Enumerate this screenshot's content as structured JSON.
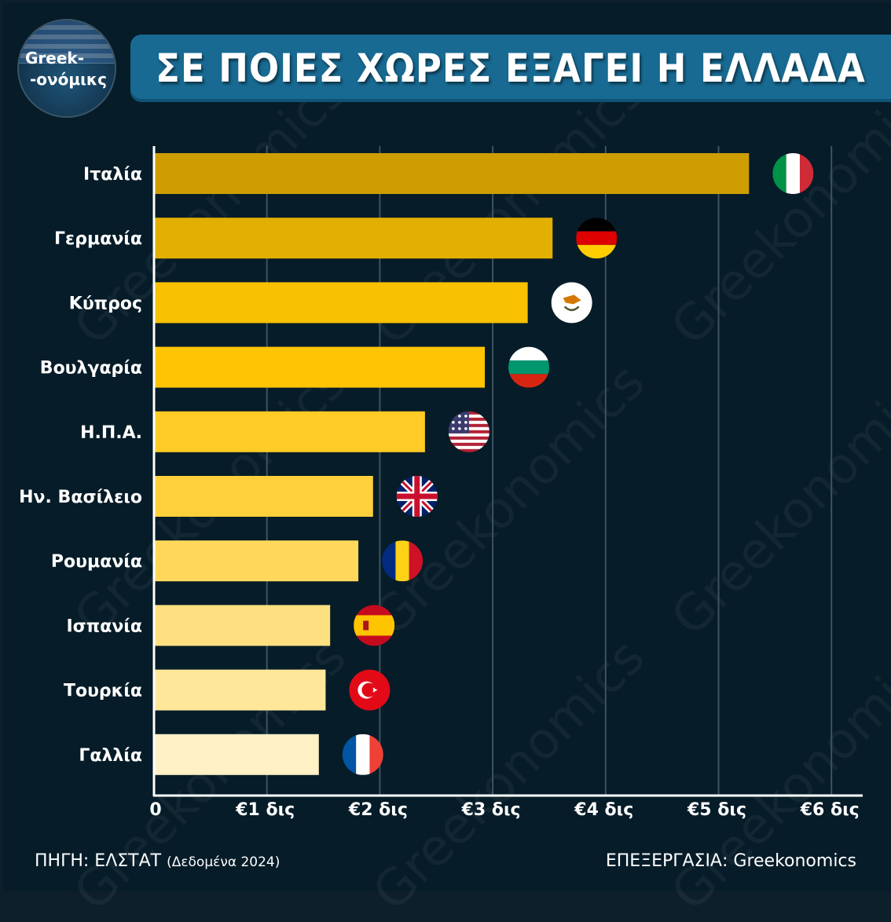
{
  "logo": {
    "line1": "Greek-",
    "line2": "-ονόμικς"
  },
  "title": "ΣΕ ΠΟΙΕΣ ΧΩΡΕΣ ΕΞΑΓΕΙ Η ΕΛΛΑΔΑ",
  "watermark": "Greekonomics",
  "colors": {
    "background": "#061c28",
    "title_bar": "#186a92",
    "grid": "#3e5361",
    "axis": "#ffffff"
  },
  "chart_data": {
    "type": "bar",
    "orientation": "horizontal",
    "categories": [
      "Ιταλία",
      "Γερμανία",
      "Κύπρος",
      "Βουλγαρία",
      "Η.Π.Α.",
      "Ην. Βασίλειο",
      "Ρουμανία",
      "Ισπανία",
      "Τουρκία",
      "Γαλλία"
    ],
    "values": [
      5.27,
      3.53,
      3.31,
      2.93,
      2.4,
      1.94,
      1.81,
      1.56,
      1.52,
      1.46
    ],
    "bar_colors": [
      "#cd9d02",
      "#e3af02",
      "#f8c101",
      "#ffc505",
      "#ffcb26",
      "#ffd03b",
      "#ffd85b",
      "#ffe081",
      "#ffe79a",
      "#fff0c5"
    ],
    "flag_icons": [
      "italy-flag-icon",
      "germany-flag-icon",
      "cyprus-flag-icon",
      "bulgaria-flag-icon",
      "usa-flag-icon",
      "uk-flag-icon",
      "romania-flag-icon",
      "spain-flag-icon",
      "turkey-flag-icon",
      "france-flag-icon"
    ],
    "xticks": [
      0,
      1,
      2,
      3,
      4,
      5,
      6
    ],
    "xtick_labels": [
      "0",
      "€1 δις",
      "€2 δις",
      "€3 δις",
      "€4 δις",
      "€5 δις",
      "€6 δις"
    ],
    "xlim": [
      0,
      6.2
    ],
    "grid": true
  },
  "footer": {
    "source": "ΠΗΓΗ: ΕΛΣΤΑΤ",
    "source_note": "(Δεδομένα 2024)",
    "credit": "ΕΠΕΞΕΡΓΑΣΙΑ: Greekonomics"
  }
}
